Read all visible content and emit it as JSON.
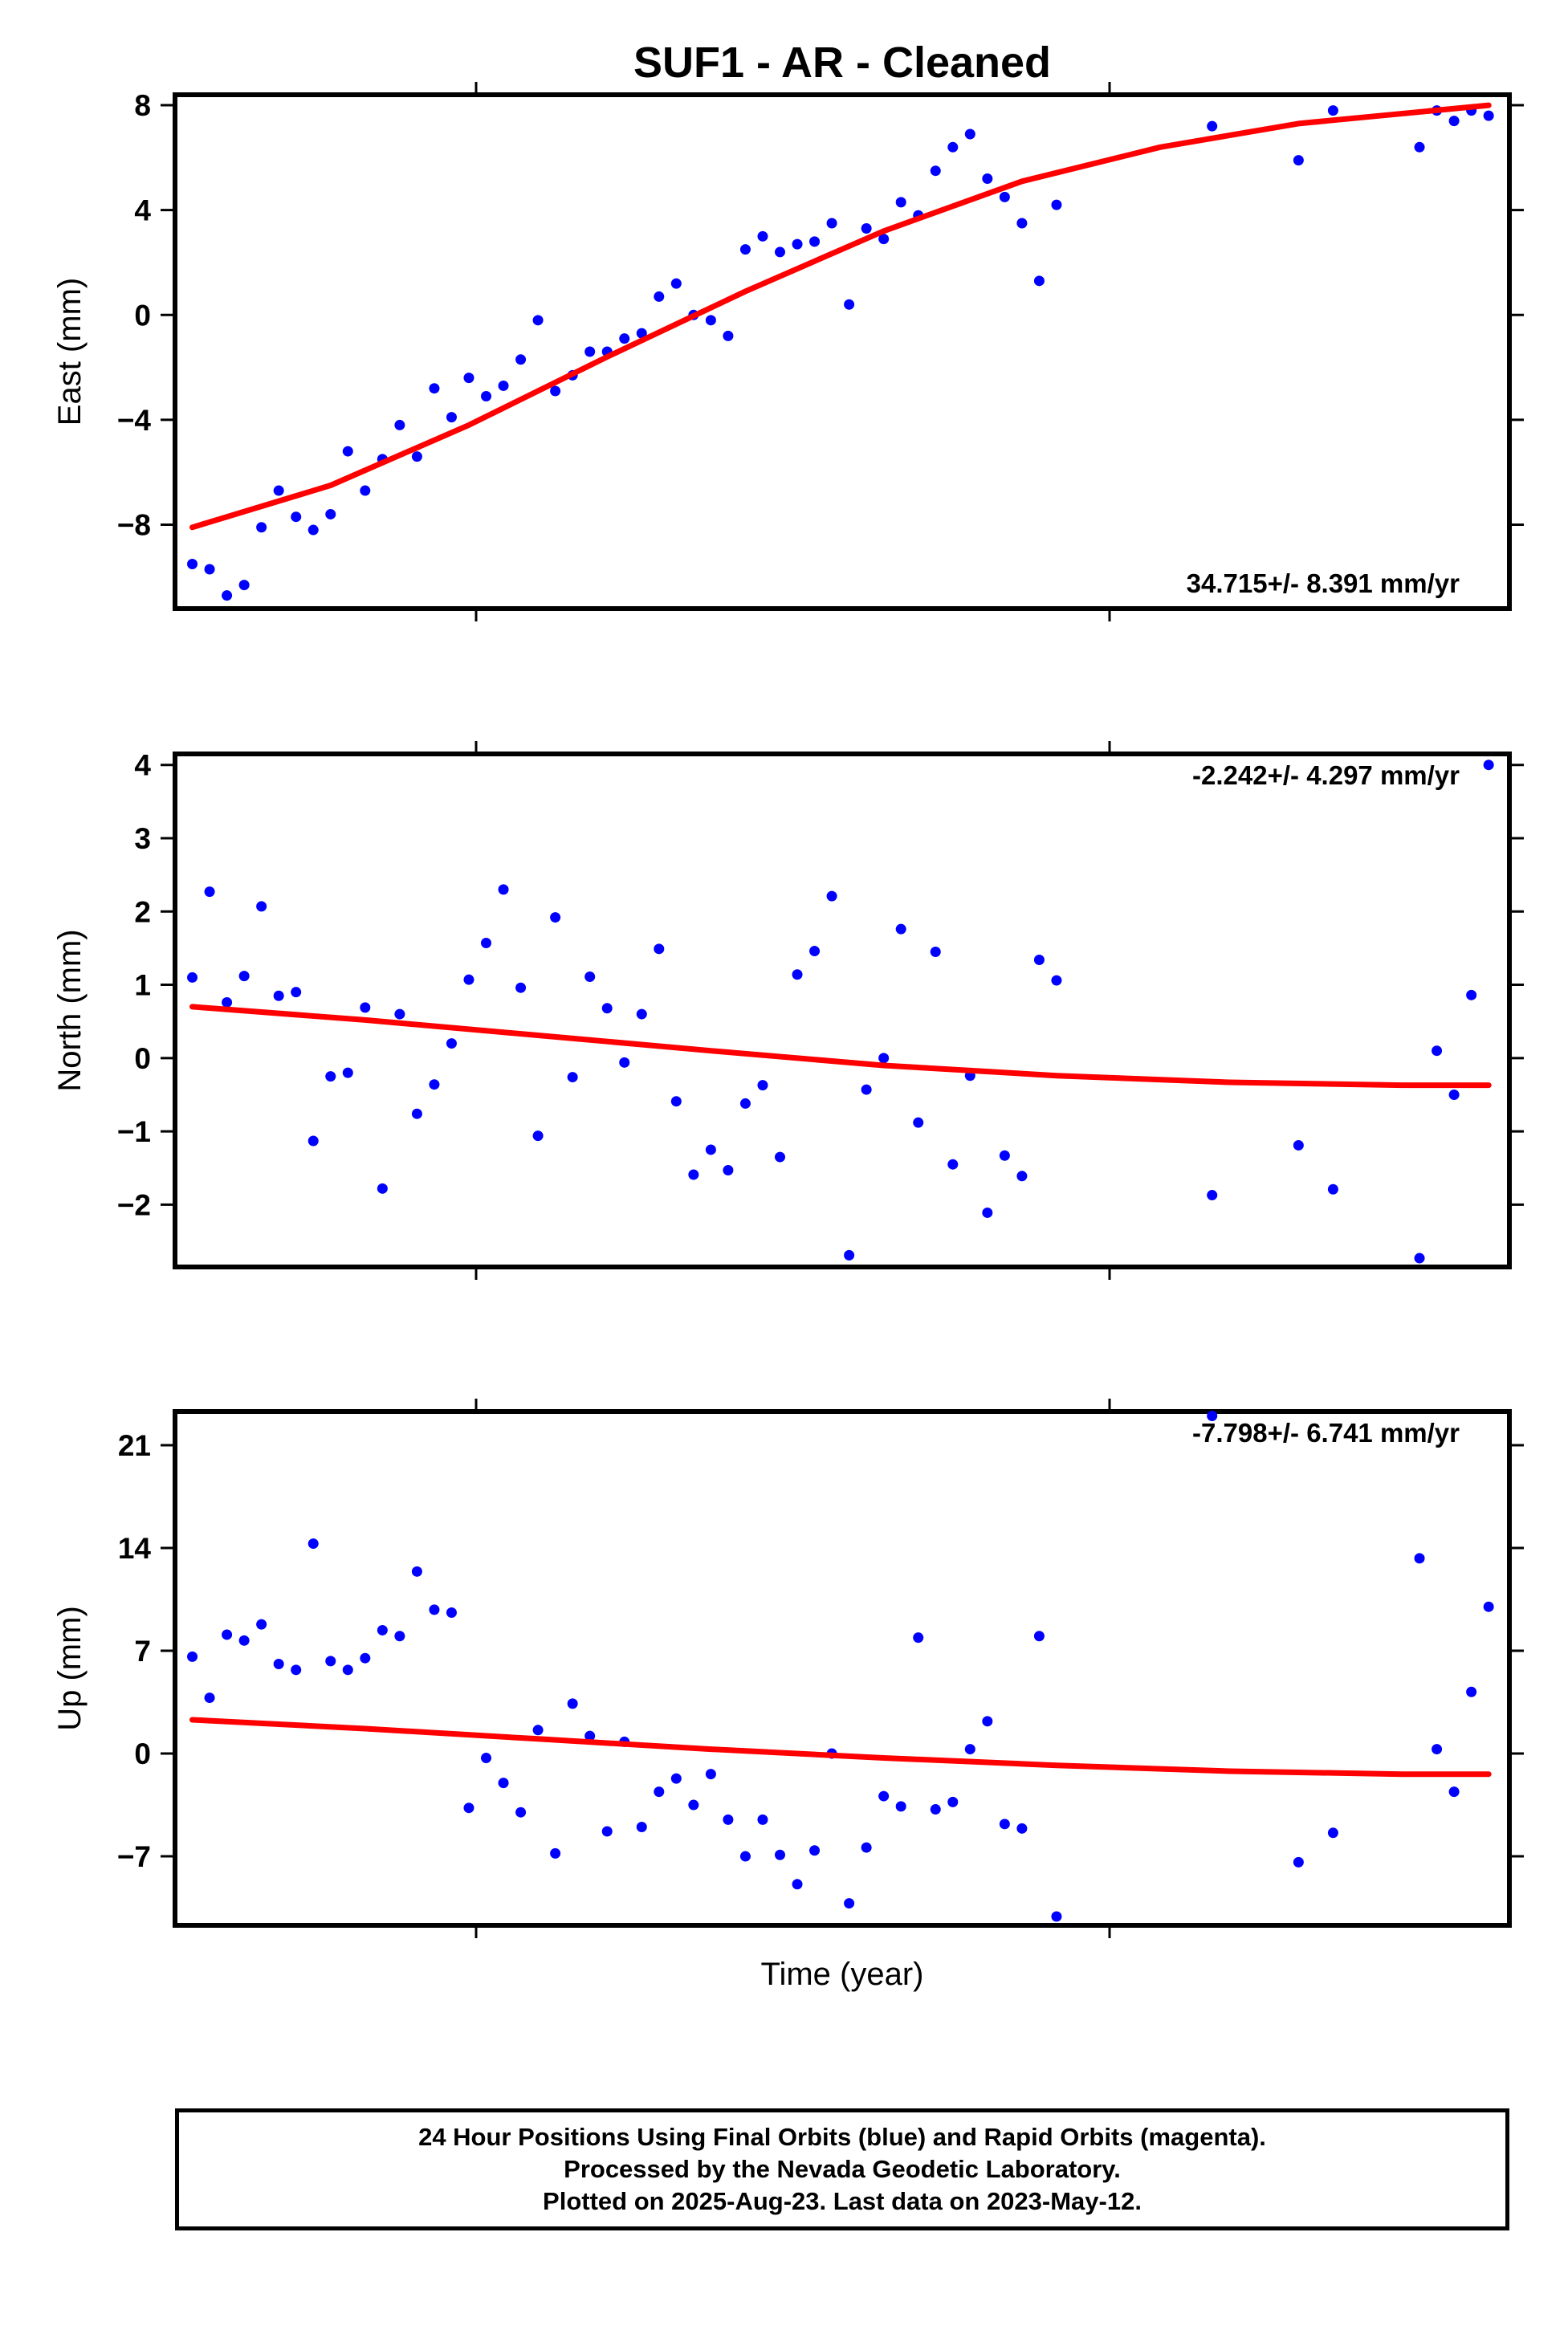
{
  "title": "SUF1  - AR - Cleaned",
  "xlabel": "Time (year)",
  "footer": {
    "line1": "24 Hour Positions Using Final Orbits (blue) and Rapid Orbits (magenta).",
    "line2": "Processed by the Nevada Geodetic Laboratory.",
    "line3": "Plotted on 2025-Aug-23. Last data on 2023-May-12."
  },
  "colors": {
    "points": "#0000ff",
    "fit": "#ff0000",
    "axes": "#000000"
  },
  "chart_data": [
    {
      "type": "scatter",
      "ylabel": "East (mm)",
      "rate_label": "34.715+/- 8.391 mm/yr",
      "rate_position": "bottom-right",
      "ylim": [
        -11.2,
        8.4
      ],
      "yticks": [
        8,
        4,
        0,
        -4,
        -8
      ],
      "ytick_labels": [
        "8",
        "4",
        "0",
        "−4",
        "−8"
      ],
      "series": [
        {
          "values": [
            [
              1,
              -9.5
            ],
            [
              2,
              -9.7
            ],
            [
              3,
              -10.7
            ],
            [
              4,
              -10.3
            ],
            [
              5,
              -8.1
            ],
            [
              6,
              -6.7
            ],
            [
              7,
              -7.7
            ],
            [
              8,
              -8.2
            ],
            [
              9,
              -7.6
            ],
            [
              10,
              -5.2
            ],
            [
              11,
              -6.7
            ],
            [
              12,
              -5.5
            ],
            [
              13,
              -4.2
            ],
            [
              14,
              -5.4
            ],
            [
              15,
              -2.8
            ],
            [
              16,
              -3.9
            ],
            [
              17,
              -2.4
            ],
            [
              18,
              -3.1
            ],
            [
              19,
              -2.7
            ],
            [
              20,
              -1.7
            ],
            [
              21,
              -0.2
            ],
            [
              22,
              -2.9
            ],
            [
              23,
              -2.3
            ],
            [
              24,
              -1.4
            ],
            [
              25,
              -1.4
            ],
            [
              26,
              -0.9
            ],
            [
              27,
              -0.7
            ],
            [
              28,
              0.7
            ],
            [
              29,
              1.2
            ],
            [
              30,
              0.0
            ],
            [
              31,
              -0.2
            ],
            [
              32,
              -0.8
            ],
            [
              33,
              2.5
            ],
            [
              34,
              3.0
            ],
            [
              35,
              2.4
            ],
            [
              36,
              2.7
            ],
            [
              37,
              2.8
            ],
            [
              38,
              3.5
            ],
            [
              39,
              0.4
            ],
            [
              40,
              3.3
            ],
            [
              41,
              2.9
            ],
            [
              42,
              4.3
            ],
            [
              43,
              3.8
            ],
            [
              44,
              5.5
            ],
            [
              45,
              6.4
            ],
            [
              46,
              6.9
            ],
            [
              47,
              5.2
            ],
            [
              48,
              4.5
            ],
            [
              49,
              3.5
            ],
            [
              50,
              1.3
            ],
            [
              51,
              4.2
            ],
            [
              60,
              7.2
            ],
            [
              65,
              5.9
            ],
            [
              67,
              7.8
            ],
            [
              72,
              6.4
            ],
            [
              73,
              7.8
            ],
            [
              74,
              7.4
            ],
            [
              75,
              7.8
            ],
            [
              76,
              7.6
            ]
          ]
        },
        {
          "fit": [
            [
              1,
              -8.1
            ],
            [
              9,
              -6.5
            ],
            [
              17,
              -4.2
            ],
            [
              25,
              -1.6
            ],
            [
              33,
              0.9
            ],
            [
              41,
              3.2
            ],
            [
              49,
              5.1
            ],
            [
              57,
              6.4
            ],
            [
              65,
              7.3
            ],
            [
              76,
              8.0
            ]
          ]
        }
      ]
    },
    {
      "type": "scatter",
      "ylabel": "North (mm)",
      "rate_label": "-2.242+/- 4.297 mm/yr",
      "rate_position": "top-right",
      "ylim": [
        -2.85,
        4.15
      ],
      "yticks": [
        4,
        3,
        2,
        1,
        0,
        -1,
        -2
      ],
      "ytick_labels": [
        "4",
        "3",
        "2",
        "1",
        "0",
        "−1",
        "−2"
      ],
      "series": [
        {
          "values": [
            [
              1,
              1.1
            ],
            [
              2,
              2.27
            ],
            [
              3,
              0.76
            ],
            [
              4,
              1.12
            ],
            [
              5,
              2.07
            ],
            [
              6,
              0.85
            ],
            [
              7,
              0.9
            ],
            [
              8,
              -1.13
            ],
            [
              9,
              -0.25
            ],
            [
              10,
              -0.2
            ],
            [
              11,
              0.69
            ],
            [
              12,
              -1.78
            ],
            [
              13,
              0.6
            ],
            [
              14,
              -0.76
            ],
            [
              15,
              -0.36
            ],
            [
              16,
              0.2
            ],
            [
              17,
              1.07
            ],
            [
              18,
              1.57
            ],
            [
              19,
              2.3
            ],
            [
              20,
              0.96
            ],
            [
              21,
              -1.06
            ],
            [
              22,
              1.92
            ],
            [
              23,
              -0.26
            ],
            [
              24,
              1.11
            ],
            [
              25,
              0.68
            ],
            [
              26,
              -0.06
            ],
            [
              27,
              0.6
            ],
            [
              28,
              1.49
            ],
            [
              29,
              -0.59
            ],
            [
              30,
              -1.59
            ],
            [
              31,
              -1.25
            ],
            [
              32,
              -1.53
            ],
            [
              33,
              -0.62
            ],
            [
              34,
              -0.37
            ],
            [
              35,
              -1.35
            ],
            [
              36,
              1.14
            ],
            [
              37,
              1.46
            ],
            [
              38,
              2.21
            ],
            [
              39,
              -2.69
            ],
            [
              40,
              -0.43
            ],
            [
              41,
              0.0
            ],
            [
              42,
              1.76
            ],
            [
              43,
              -0.88
            ],
            [
              44,
              1.45
            ],
            [
              45,
              -1.45
            ],
            [
              46,
              -0.24
            ],
            [
              47,
              -2.11
            ],
            [
              48,
              -1.33
            ],
            [
              49,
              -1.61
            ],
            [
              50,
              1.34
            ],
            [
              51,
              1.06
            ],
            [
              60,
              -1.87
            ],
            [
              65,
              -1.19
            ],
            [
              67,
              -1.79
            ],
            [
              72,
              -2.73
            ],
            [
              73,
              0.1
            ],
            [
              74,
              -0.5
            ],
            [
              75,
              0.86
            ],
            [
              76,
              4.0
            ]
          ]
        },
        {
          "fit": [
            [
              1,
              0.7
            ],
            [
              11,
              0.52
            ],
            [
              21,
              0.31
            ],
            [
              31,
              0.1
            ],
            [
              41,
              -0.1
            ],
            [
              51,
              -0.24
            ],
            [
              61,
              -0.33
            ],
            [
              71,
              -0.37
            ],
            [
              76,
              -0.37
            ]
          ]
        }
      ]
    },
    {
      "type": "scatter",
      "ylabel": "Up (mm)",
      "rate_label": "-7.798+/- 6.741 mm/yr",
      "rate_position": "top-right",
      "ylim": [
        -11.7,
        23.3
      ],
      "yticks": [
        21,
        14,
        7,
        0,
        -7
      ],
      "ytick_labels": [
        "21",
        "14",
        "7",
        "0",
        "−7"
      ],
      "series": [
        {
          "values": [
            [
              1,
              6.6
            ],
            [
              2,
              3.8
            ],
            [
              3,
              8.1
            ],
            [
              4,
              7.7
            ],
            [
              5,
              8.8
            ],
            [
              6,
              6.1
            ],
            [
              7,
              5.7
            ],
            [
              8,
              14.3
            ],
            [
              9,
              6.3
            ],
            [
              10,
              5.7
            ],
            [
              11,
              6.5
            ],
            [
              12,
              8.4
            ],
            [
              13,
              8.0
            ],
            [
              14,
              12.4
            ],
            [
              15,
              9.8
            ],
            [
              16,
              9.6
            ],
            [
              17,
              -3.7
            ],
            [
              18,
              -0.3
            ],
            [
              19,
              -2.0
            ],
            [
              20,
              -4.0
            ],
            [
              21,
              1.6
            ],
            [
              22,
              -6.8
            ],
            [
              23,
              3.4
            ],
            [
              24,
              1.2
            ],
            [
              25,
              -5.3
            ],
            [
              26,
              0.8
            ],
            [
              27,
              -5.0
            ],
            [
              28,
              -2.6
            ],
            [
              29,
              -1.7
            ],
            [
              30,
              -3.5
            ],
            [
              31,
              -1.4
            ],
            [
              32,
              -4.5
            ],
            [
              33,
              -7.0
            ],
            [
              34,
              -4.5
            ],
            [
              35,
              -6.9
            ],
            [
              36,
              -8.9
            ],
            [
              37,
              -6.6
            ],
            [
              38,
              0.0
            ],
            [
              39,
              -10.2
            ],
            [
              40,
              -6.4
            ],
            [
              41,
              -2.9
            ],
            [
              42,
              -3.6
            ],
            [
              43,
              7.9
            ],
            [
              44,
              -3.8
            ],
            [
              45,
              -3.3
            ],
            [
              46,
              0.3
            ],
            [
              47,
              2.2
            ],
            [
              48,
              -4.8
            ],
            [
              49,
              -5.1
            ],
            [
              50,
              8.0
            ],
            [
              51,
              -11.1
            ],
            [
              60,
              23.0
            ],
            [
              65,
              -7.4
            ],
            [
              67,
              -5.4
            ],
            [
              72,
              13.3
            ],
            [
              73,
              0.3
            ],
            [
              74,
              -2.6
            ],
            [
              75,
              4.2
            ],
            [
              76,
              10.0
            ]
          ]
        },
        {
          "fit": [
            [
              1,
              2.3
            ],
            [
              11,
              1.7
            ],
            [
              21,
              1.0
            ],
            [
              31,
              0.3
            ],
            [
              41,
              -0.3
            ],
            [
              51,
              -0.8
            ],
            [
              61,
              -1.2
            ],
            [
              71,
              -1.4
            ],
            [
              76,
              -1.4
            ]
          ]
        }
      ]
    }
  ]
}
